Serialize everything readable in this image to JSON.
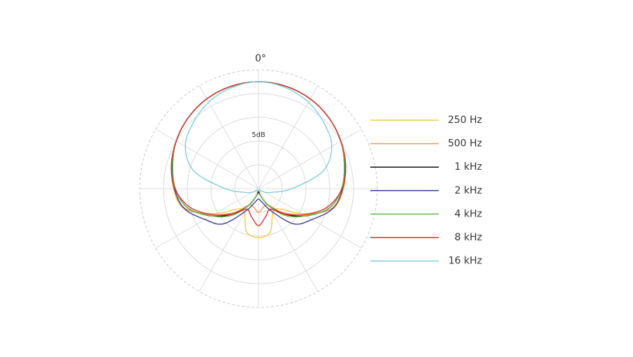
{
  "chart_data": {
    "type": "polar",
    "theta_label": "0°",
    "radial_label": "5dB",
    "angles": [
      0,
      15,
      30,
      45,
      60,
      75,
      90,
      105,
      120,
      135,
      150,
      165,
      180,
      195,
      210,
      225,
      240,
      255,
      270,
      285,
      300,
      315,
      330,
      345
    ],
    "rlim": [
      -25,
      0
    ],
    "rticks": [
      -20,
      -15,
      -10,
      -5,
      0
    ],
    "thetaticks": [
      0,
      30,
      60,
      90,
      120,
      150,
      180,
      210,
      240,
      270,
      300,
      330
    ],
    "series": [
      {
        "name": "250 Hz",
        "color": "#f5c842",
        "values": [
          -2.5,
          -2.7,
          -3.2,
          -4,
          -5,
          -6.2,
          -7.1,
          -8.8,
          -14.5,
          -19,
          -19,
          -15.5,
          -14.7,
          -15.5,
          -19,
          -19,
          -14.5,
          -8.8,
          -7.1,
          -6.2,
          -5,
          -4,
          -3.2,
          -2.7
        ]
      },
      {
        "name": "500 Hz",
        "color": "#f0965a",
        "values": [
          -2.5,
          -2.7,
          -3.2,
          -4,
          -5,
          -6.2,
          -7.2,
          -9,
          -14,
          -18,
          -21,
          -21,
          -20,
          -21,
          -21,
          -18,
          -14,
          -9,
          -7.2,
          -6.2,
          -5,
          -4,
          -3.2,
          -2.7
        ]
      },
      {
        "name": "1 kHz",
        "color": "#111111",
        "values": [
          -2.5,
          -2.7,
          -3.2,
          -4,
          -5,
          -6.3,
          -7.5,
          -9.5,
          -13.5,
          -17.5,
          -21,
          -23.5,
          -24.5,
          -23.5,
          -21,
          -17.5,
          -13.5,
          -9.5,
          -7.5,
          -6.3,
          -5,
          -4,
          -3.2,
          -2.7
        ]
      },
      {
        "name": "2 kHz",
        "color": "#3a3f99",
        "values": [
          -2.5,
          -2.7,
          -3.2,
          -4,
          -5,
          -6.2,
          -7.3,
          -8.8,
          -12,
          -14.5,
          -19.5,
          -22,
          -22.8,
          -22,
          -19.5,
          -14.5,
          -12,
          -8.8,
          -7.3,
          -6.2,
          -5,
          -4,
          -3.2,
          -2.7
        ]
      },
      {
        "name": "4 kHz",
        "color": "#6ab84a",
        "values": [
          -2.5,
          -2.7,
          -3.2,
          -4,
          -5,
          -6.3,
          -7.5,
          -9.5,
          -13.5,
          -17,
          -21,
          -23.5,
          -24,
          -23.5,
          -21,
          -17,
          -13.5,
          -9.5,
          -7.5,
          -6.3,
          -5,
          -4,
          -3.2,
          -2.7
        ]
      },
      {
        "name": "8 kHz",
        "color": "#d9302c",
        "values": [
          -2.5,
          -2.7,
          -3.2,
          -4,
          -5,
          -6,
          -7.4,
          -10,
          -14,
          -17.5,
          -20,
          -19,
          -17.2,
          -19,
          -20,
          -17.5,
          -14,
          -10,
          -7.4,
          -6,
          -5,
          -4,
          -3.2,
          -2.7
        ]
      },
      {
        "name": "16 kHz",
        "color": "#7ecfdc",
        "values": [
          -2.5,
          -3,
          -4,
          -5.5,
          -7.2,
          -11,
          -18,
          -22,
          -23.5,
          -24.5,
          -24.5,
          -24.5,
          -24.5,
          -24.5,
          -24.5,
          -24.5,
          -23.5,
          -22,
          -18,
          -11,
          -7.2,
          -5.5,
          -4,
          -3
        ]
      }
    ]
  }
}
